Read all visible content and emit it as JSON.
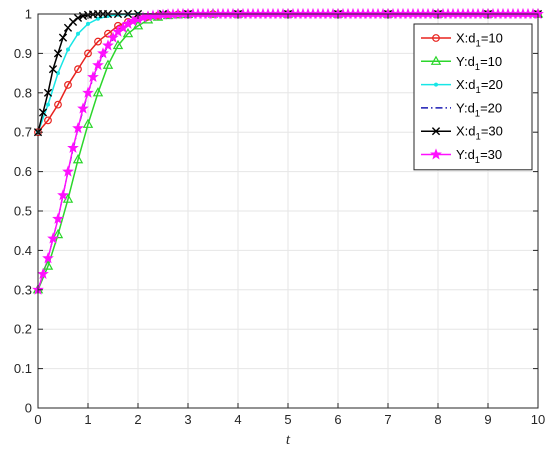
{
  "chart_data": {
    "type": "line",
    "title": "",
    "xlabel": "t",
    "ylabel": "",
    "xlim": [
      0,
      10
    ],
    "ylim": [
      0,
      1
    ],
    "xticks": [
      "0",
      "1",
      "2",
      "3",
      "4",
      "5",
      "6",
      "7",
      "8",
      "9",
      "10"
    ],
    "yticks": [
      "0",
      "0.1",
      "0.2",
      "0.3",
      "0.4",
      "0.5",
      "0.6",
      "0.7",
      "0.8",
      "0.9",
      "1"
    ],
    "grid": true,
    "legend_position": "top-right",
    "series": [
      {
        "name": "X:d1=10",
        "name_main": "X:d",
        "name_sub": "1",
        "name_tail": "=10",
        "color": "#e8231f",
        "line": "solid",
        "marker": "circle",
        "marker_every": 1,
        "x": [
          0,
          0.2,
          0.4,
          0.6,
          0.8,
          1.0,
          1.2,
          1.4,
          1.6,
          1.8,
          2.0,
          2.2,
          2.4,
          2.6,
          2.8,
          3.0,
          3.5,
          4,
          5,
          6,
          7,
          8,
          9,
          10
        ],
        "y": [
          0.7,
          0.73,
          0.77,
          0.82,
          0.86,
          0.9,
          0.93,
          0.95,
          0.97,
          0.98,
          0.99,
          0.993,
          0.996,
          0.998,
          0.999,
          1.0,
          1.0,
          1.0,
          1.0,
          1.0,
          1.0,
          1.0,
          1.0,
          1.0
        ]
      },
      {
        "name": "Y:d1=10",
        "name_main": "Y:d",
        "name_sub": "1",
        "name_tail": "=10",
        "color": "#2bd62b",
        "line": "solid",
        "marker": "triangle",
        "marker_every": 1,
        "x": [
          0,
          0.2,
          0.4,
          0.6,
          0.8,
          1.0,
          1.2,
          1.4,
          1.6,
          1.8,
          2.0,
          2.2,
          2.4,
          2.6,
          2.8,
          3.0,
          3.5,
          4,
          5,
          6,
          7,
          8,
          9,
          10
        ],
        "y": [
          0.3,
          0.36,
          0.44,
          0.53,
          0.63,
          0.72,
          0.8,
          0.87,
          0.92,
          0.95,
          0.97,
          0.985,
          0.992,
          0.996,
          0.998,
          0.999,
          1.0,
          1.0,
          1.0,
          1.0,
          1.0,
          1.0,
          1.0,
          1.0
        ]
      },
      {
        "name": "X:d1=20",
        "name_main": "X:d",
        "name_sub": "1",
        "name_tail": "=20",
        "color": "#17e6e6",
        "line": "solid",
        "marker": "dot",
        "marker_every": 1,
        "x": [
          0,
          0.2,
          0.4,
          0.6,
          0.8,
          1.0,
          1.2,
          1.4,
          1.6,
          1.8,
          2.0,
          2.5,
          3,
          4,
          5,
          6,
          7,
          8,
          9,
          10
        ],
        "y": [
          0.7,
          0.77,
          0.85,
          0.91,
          0.95,
          0.975,
          0.988,
          0.995,
          0.998,
          0.999,
          1.0,
          1.0,
          1.0,
          1.0,
          1.0,
          1.0,
          1.0,
          1.0,
          1.0,
          1.0
        ]
      },
      {
        "name": "Y:d1=20",
        "name_main": "Y:d",
        "name_sub": "1",
        "name_tail": "=20",
        "color": "#1a1ab3",
        "line": "dashdot",
        "marker": "none",
        "marker_every": 1,
        "x": [
          0,
          0.2,
          0.4,
          0.6,
          0.8,
          1.0,
          1.2,
          1.4,
          1.6,
          1.8,
          2.0,
          2.2,
          2.5,
          3,
          4,
          5,
          6,
          7,
          8,
          9,
          10
        ],
        "y": [
          0.3,
          0.38,
          0.48,
          0.6,
          0.71,
          0.8,
          0.87,
          0.92,
          0.95,
          0.97,
          0.985,
          0.992,
          0.997,
          1.0,
          1.0,
          1.0,
          1.0,
          1.0,
          1.0,
          1.0,
          1.0
        ]
      },
      {
        "name": "X:d1=30",
        "name_main": "X:d",
        "name_sub": "1",
        "name_tail": "=30",
        "color": "#000000",
        "line": "solid",
        "marker": "x",
        "marker_every": 1,
        "x": [
          0,
          0.1,
          0.2,
          0.3,
          0.4,
          0.5,
          0.6,
          0.7,
          0.8,
          0.9,
          1.0,
          1.1,
          1.2,
          1.3,
          1.4,
          1.6,
          1.8,
          2.0,
          2.5,
          3,
          4,
          5,
          6,
          7,
          8,
          9,
          10
        ],
        "y": [
          0.7,
          0.75,
          0.8,
          0.86,
          0.9,
          0.94,
          0.965,
          0.98,
          0.99,
          0.995,
          0.998,
          0.999,
          1.0,
          1.0,
          1.0,
          1.0,
          1.0,
          1.0,
          1.0,
          1.0,
          1.0,
          1.0,
          1.0,
          1.0,
          1.0,
          1.0,
          1.0
        ]
      },
      {
        "name": "Y:d1=30",
        "name_main": "Y:d",
        "name_sub": "1",
        "name_tail": "=30",
        "color": "#ff10ff",
        "line": "solid",
        "marker": "star",
        "marker_every": 1,
        "x": [
          0,
          0.1,
          0.2,
          0.3,
          0.4,
          0.5,
          0.6,
          0.7,
          0.8,
          0.9,
          1.0,
          1.1,
          1.2,
          1.3,
          1.4,
          1.5,
          1.6,
          1.7,
          1.8,
          1.9,
          2.0,
          2.1,
          2.2,
          2.3,
          2.4,
          2.5,
          2.6,
          2.7,
          2.8,
          2.9,
          3.0,
          3.1,
          3.2,
          3.3,
          3.4,
          3.5,
          3.6,
          3.7,
          3.8,
          3.9,
          4.0,
          4.1,
          4.2,
          4.3,
          4.4,
          4.5,
          4.6,
          4.7,
          4.8,
          4.9,
          5.0,
          5.1,
          5.2,
          5.3,
          5.4,
          5.5,
          5.6,
          5.7,
          5.8,
          5.9,
          6.0,
          6.1,
          6.2,
          6.3,
          6.4,
          6.5,
          6.6,
          6.7,
          6.8,
          6.9,
          7.0,
          7.1,
          7.2,
          7.3,
          7.4,
          7.5,
          7.6,
          7.7,
          7.8,
          7.9,
          8.0,
          8.1,
          8.2,
          8.3,
          8.4,
          8.5,
          8.6,
          8.7,
          8.8,
          8.9,
          9.0,
          9.1,
          9.2,
          9.3,
          9.4,
          9.5,
          9.6,
          9.7,
          9.8,
          9.9,
          10.0
        ],
        "y": [
          0.3,
          0.34,
          0.38,
          0.43,
          0.48,
          0.54,
          0.6,
          0.66,
          0.71,
          0.76,
          0.8,
          0.84,
          0.87,
          0.9,
          0.92,
          0.94,
          0.955,
          0.965,
          0.975,
          0.982,
          0.987,
          0.991,
          0.994,
          0.996,
          0.997,
          0.998,
          0.999,
          0.999,
          1.0,
          1.0,
          1.0,
          1.0,
          1.0,
          1.0,
          1.0,
          1.0,
          1.0,
          1.0,
          1.0,
          1.0,
          1.0,
          1.0,
          1.0,
          1.0,
          1.0,
          1.0,
          1.0,
          1.0,
          1.0,
          1.0,
          1.0,
          1.0,
          1.0,
          1.0,
          1.0,
          1.0,
          1.0,
          1.0,
          1.0,
          1.0,
          1.0,
          1.0,
          1.0,
          1.0,
          1.0,
          1.0,
          1.0,
          1.0,
          1.0,
          1.0,
          1.0,
          1.0,
          1.0,
          1.0,
          1.0,
          1.0,
          1.0,
          1.0,
          1.0,
          1.0,
          1.0,
          1.0,
          1.0,
          1.0,
          1.0,
          1.0,
          1.0,
          1.0,
          1.0,
          1.0,
          1.0,
          1.0,
          1.0,
          1.0,
          1.0,
          1.0,
          1.0,
          1.0,
          1.0,
          1.0,
          1.0
        ]
      }
    ]
  }
}
